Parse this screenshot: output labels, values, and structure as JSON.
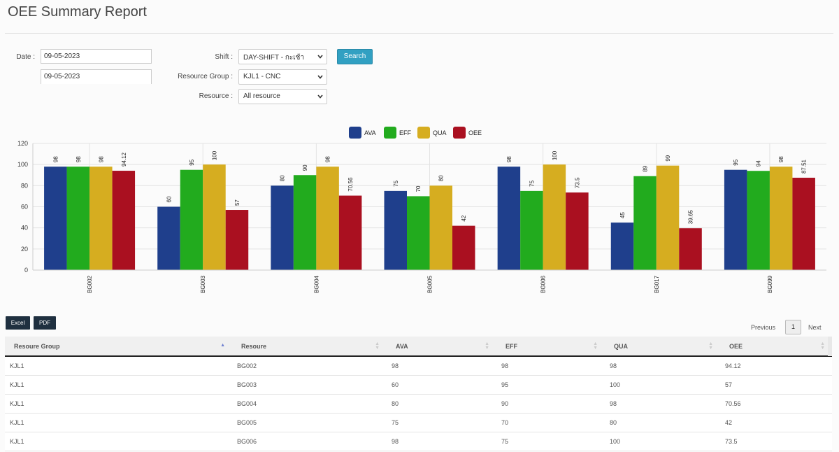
{
  "page": {
    "title": "OEE Summary Report"
  },
  "filters": {
    "date_label": "Date :",
    "date_from": "09-05-2023",
    "date_to": "09-05-2023",
    "shift_label": "Shift :",
    "shift_value": "DAY-SHIFT - กะเช้า",
    "resource_group_label": "Resource Group :",
    "resource_group_value": "KJL1 - CNC",
    "resource_label": "Resource :",
    "resource_value": "All resource",
    "search_label": "Search"
  },
  "chart_data": {
    "type": "bar",
    "categories": [
      "BG002",
      "BG003",
      "BG004",
      "BG005",
      "BG006",
      "BG017",
      "BG099"
    ],
    "series": [
      {
        "name": "AVA",
        "color": "#1f3f8c",
        "values": [
          98,
          60,
          80,
          75,
          98,
          45,
          95
        ]
      },
      {
        "name": "EFF",
        "color": "#22ab1e",
        "values": [
          98,
          95,
          90,
          70,
          75,
          89,
          94
        ]
      },
      {
        "name": "QUA",
        "color": "#d6ad20",
        "values": [
          98,
          100,
          98,
          80,
          100,
          99,
          98
        ]
      },
      {
        "name": "OEE",
        "color": "#aa1020",
        "values": [
          94.12,
          57,
          70.56,
          42,
          73.5,
          39.65,
          87.51
        ]
      }
    ],
    "value_labels": [
      [
        "98",
        "60",
        "80",
        "75",
        "98",
        "45",
        "95"
      ],
      [
        "98",
        "95",
        "90",
        "70",
        "75",
        "89",
        "94"
      ],
      [
        "98",
        "100",
        "98",
        "80",
        "100",
        "99",
        "98"
      ],
      [
        "94.12",
        "57",
        "70.56",
        "42",
        "73.5",
        "39.65",
        "87.51"
      ]
    ],
    "ylim": [
      0,
      120
    ],
    "yticks": [
      "0",
      "20",
      "40",
      "60",
      "80",
      "100",
      "120"
    ],
    "legend_position": "top-center",
    "grid": true
  },
  "actions": {
    "excel_label": "Excel",
    "pdf_label": "PDF"
  },
  "pagination": {
    "previous_label": "Previous",
    "current_page": "1",
    "next_label": "Next"
  },
  "table": {
    "headers": [
      "Resoure Group",
      "Resoure",
      "AVA",
      "EFF",
      "QUA",
      "OEE"
    ],
    "rows": [
      [
        "KJL1",
        "BG002",
        "98",
        "98",
        "98",
        "94.12"
      ],
      [
        "KJL1",
        "BG003",
        "60",
        "95",
        "100",
        "57"
      ],
      [
        "KJL1",
        "BG004",
        "80",
        "90",
        "98",
        "70.56"
      ],
      [
        "KJL1",
        "BG005",
        "75",
        "70",
        "80",
        "42"
      ],
      [
        "KJL1",
        "BG006",
        "98",
        "75",
        "100",
        "73.5"
      ]
    ]
  }
}
